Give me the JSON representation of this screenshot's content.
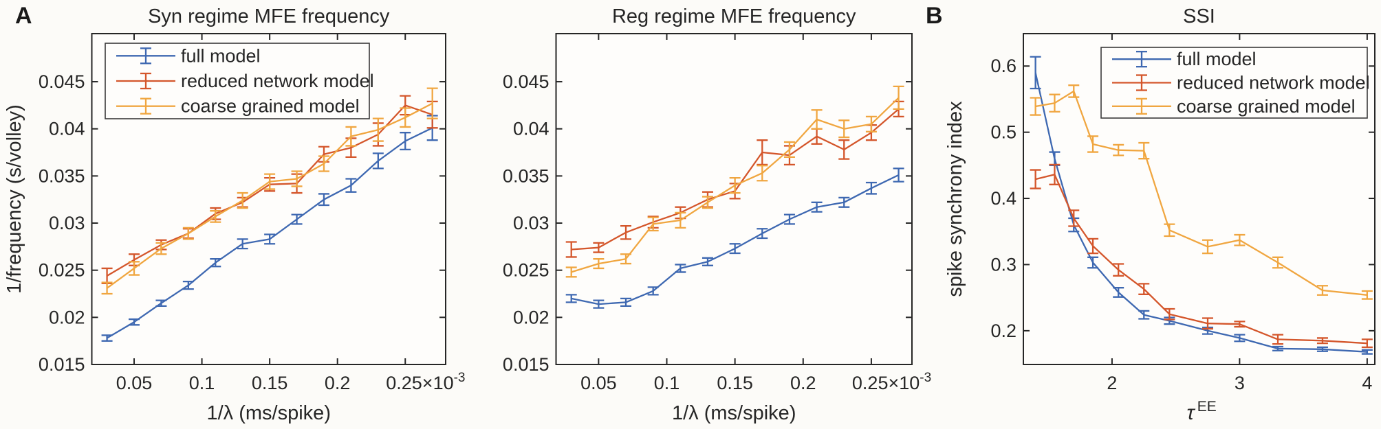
{
  "figure": {
    "background": "#fcfbf8",
    "plot_background": "#fefdfb",
    "text_color": "#262626",
    "axis_color": "#262626",
    "panel_a_label": "A",
    "panel_b_label": "B"
  },
  "colors": {
    "full_model": "#3E68B1",
    "reduced_network_model": "#D4562B",
    "coarse_grained_model": "#F0A640"
  },
  "legend": {
    "items": [
      "full model",
      "reduced network model",
      "coarse grained model"
    ]
  },
  "chart_data": [
    {
      "type": "line",
      "title": "Syn regime MFE frequency",
      "xlabel": "1/λ (ms/spike)",
      "ylabel": "1/frequency (s/volley)",
      "xlim": [
        0.0188,
        0.2798
      ],
      "ylim": [
        0.015,
        0.0501
      ],
      "grid": false,
      "legend_position": "top-left",
      "xticks": {
        "values": [
          0.05,
          0.1,
          0.15,
          0.2,
          0.25
        ],
        "labels": [
          "0.05",
          "0.1",
          "0.15",
          "0.2",
          "0.25"
        ],
        "suffix": {
          "base": "×10",
          "exp": "-3"
        }
      },
      "yticks": {
        "values": [
          0.015,
          0.02,
          0.025,
          0.03,
          0.035,
          0.04,
          0.045
        ],
        "labels": [
          "0.015",
          "0.02",
          "0.025",
          "0.03",
          "0.035",
          "0.04",
          "0.045"
        ]
      },
      "x": [
        0.03,
        0.05,
        0.07,
        0.09,
        0.11,
        0.13,
        0.15,
        0.17,
        0.19,
        0.21,
        0.23,
        0.25,
        0.27
      ],
      "series": [
        {
          "name": "full model",
          "color_key": "full_model",
          "values": [
            0.0178,
            0.0195,
            0.0215,
            0.0234,
            0.0258,
            0.0278,
            0.0283,
            0.0304,
            0.0325,
            0.034,
            0.0366,
            0.0387,
            0.0401
          ],
          "errors": [
            0.0003,
            0.0003,
            0.0003,
            0.0004,
            0.0004,
            0.0005,
            0.0005,
            0.0005,
            0.0006,
            0.0007,
            0.0008,
            0.0009,
            0.0013
          ]
        },
        {
          "name": "reduced network model",
          "color_key": "reduced_network_model",
          "values": [
            0.0244,
            0.0261,
            0.0277,
            0.0289,
            0.031,
            0.0322,
            0.0341,
            0.0342,
            0.0373,
            0.038,
            0.0394,
            0.0425,
            0.0415
          ],
          "errors": [
            0.0008,
            0.0006,
            0.0005,
            0.0005,
            0.0006,
            0.0005,
            0.0007,
            0.001,
            0.0008,
            0.001,
            0.0012,
            0.001,
            0.0014
          ]
        },
        {
          "name": "coarse grained model",
          "color_key": "coarse_grained_model",
          "values": [
            0.0231,
            0.0252,
            0.0273,
            0.0289,
            0.0307,
            0.0324,
            0.0344,
            0.0347,
            0.0363,
            0.0392,
            0.0399,
            0.0412,
            0.0427
          ],
          "errors": [
            0.0006,
            0.0007,
            0.0006,
            0.0006,
            0.0006,
            0.0008,
            0.0008,
            0.0008,
            0.0008,
            0.001,
            0.0012,
            0.001,
            0.0016
          ]
        }
      ]
    },
    {
      "type": "line",
      "title": "Reg regime MFE frequency",
      "xlabel": "1/λ (ms/spike)",
      "ylabel": "",
      "xlim": [
        0.0188,
        0.2798
      ],
      "ylim": [
        0.015,
        0.0501
      ],
      "grid": false,
      "legend_position": "none",
      "xticks": {
        "values": [
          0.05,
          0.1,
          0.15,
          0.2,
          0.25
        ],
        "labels": [
          "0.05",
          "0.1",
          "0.15",
          "0.2",
          "0.25"
        ],
        "suffix": {
          "base": "×10",
          "exp": "-3"
        }
      },
      "yticks": {
        "values": [
          0.015,
          0.02,
          0.025,
          0.03,
          0.035,
          0.04,
          0.045
        ],
        "labels": [
          "0.015",
          "0.02",
          "0.025",
          "0.03",
          "0.035",
          "0.04",
          "0.045"
        ]
      },
      "x": [
        0.03,
        0.05,
        0.07,
        0.09,
        0.11,
        0.13,
        0.15,
        0.17,
        0.19,
        0.21,
        0.23,
        0.25,
        0.27
      ],
      "series": [
        {
          "name": "full model",
          "color_key": "full_model",
          "values": [
            0.022,
            0.0214,
            0.0216,
            0.0228,
            0.0252,
            0.0259,
            0.0273,
            0.0289,
            0.0304,
            0.0317,
            0.0322,
            0.0337,
            0.0351
          ],
          "errors": [
            0.0004,
            0.0004,
            0.0004,
            0.0004,
            0.0004,
            0.0004,
            0.0005,
            0.0005,
            0.0005,
            0.0005,
            0.0005,
            0.0006,
            0.0007
          ]
        },
        {
          "name": "reduced network model",
          "color_key": "reduced_network_model",
          "values": [
            0.0272,
            0.0274,
            0.029,
            0.0301,
            0.0311,
            0.0325,
            0.0334,
            0.0375,
            0.0372,
            0.0392,
            0.0378,
            0.0396,
            0.0421
          ],
          "errors": [
            0.0008,
            0.0005,
            0.0007,
            0.0006,
            0.0006,
            0.0008,
            0.0008,
            0.0013,
            0.001,
            0.0008,
            0.001,
            0.0008,
            0.0008
          ]
        },
        {
          "name": "coarse grained model",
          "color_key": "coarse_grained_model",
          "values": [
            0.0248,
            0.0257,
            0.0262,
            0.0299,
            0.0303,
            0.0322,
            0.034,
            0.0353,
            0.0378,
            0.041,
            0.04,
            0.0405,
            0.0433
          ],
          "errors": [
            0.0005,
            0.0005,
            0.0005,
            0.0007,
            0.0008,
            0.0006,
            0.0008,
            0.0008,
            0.0008,
            0.001,
            0.0009,
            0.0008,
            0.0012
          ]
        }
      ]
    },
    {
      "type": "line",
      "title": "SSI",
      "xlabel_tau": {
        "base": "τ",
        "sup": "EE"
      },
      "ylabel": "spike synchrony index",
      "xlim": [
        1.305,
        4.06
      ],
      "ylim": [
        0.149,
        0.649
      ],
      "grid": false,
      "legend_position": "top-right",
      "xticks": {
        "values": [
          2,
          3,
          4
        ],
        "labels": [
          "2",
          "3",
          "4"
        ]
      },
      "yticks": {
        "values": [
          0.2,
          0.3,
          0.4,
          0.5,
          0.6
        ],
        "labels": [
          "0.2",
          "0.3",
          "0.4",
          "0.5",
          "0.6"
        ]
      },
      "x": [
        1.4,
        1.55,
        1.7,
        1.85,
        2.05,
        2.25,
        2.45,
        2.75,
        3.0,
        3.3,
        3.65,
        4.0
      ],
      "series": [
        {
          "name": "full model",
          "color_key": "full_model",
          "values": [
            0.59,
            0.46,
            0.36,
            0.303,
            0.258,
            0.224,
            0.215,
            0.2,
            0.189,
            0.173,
            0.172,
            0.168
          ],
          "errors": [
            0.024,
            0.01,
            0.01,
            0.008,
            0.007,
            0.006,
            0.005,
            0.005,
            0.005,
            0.003,
            0.003,
            0.003
          ]
        },
        {
          "name": "reduced network model",
          "color_key": "reduced_network_model",
          "values": [
            0.429,
            0.436,
            0.37,
            0.328,
            0.292,
            0.263,
            0.225,
            0.211,
            0.21,
            0.187,
            0.185,
            0.181
          ],
          "errors": [
            0.014,
            0.015,
            0.012,
            0.011,
            0.009,
            0.008,
            0.008,
            0.008,
            0.004,
            0.007,
            0.004,
            0.006
          ]
        },
        {
          "name": "coarse grained model",
          "color_key": "coarse_grained_model",
          "values": [
            0.539,
            0.544,
            0.562,
            0.482,
            0.473,
            0.472,
            0.352,
            0.327,
            0.337,
            0.303,
            0.261,
            0.254
          ],
          "errors": [
            0.013,
            0.013,
            0.009,
            0.012,
            0.008,
            0.012,
            0.009,
            0.01,
            0.008,
            0.008,
            0.007,
            0.006
          ]
        }
      ]
    }
  ]
}
